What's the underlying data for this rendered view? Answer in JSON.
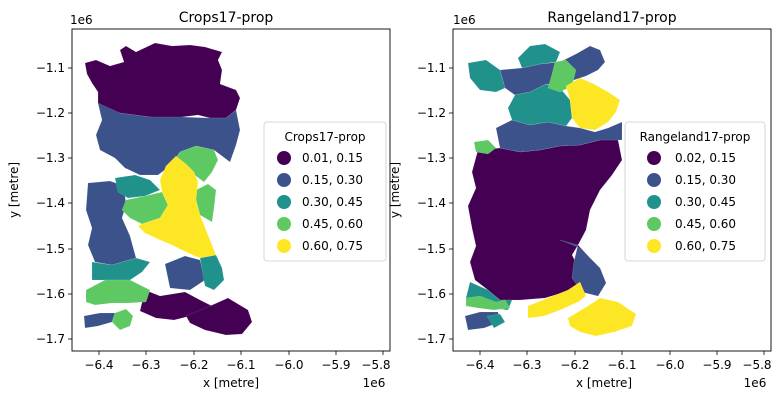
{
  "palette": [
    "#440154",
    "#3b528b",
    "#21918c",
    "#5ec962",
    "#fde725"
  ],
  "panels": [
    {
      "title": "Crops17-prop",
      "x_label": "x [metre]",
      "y_label": "y [metre]",
      "x_offset": "1e6",
      "y_offset": "1e6",
      "x_ticks": [
        "−6.4",
        "−6.3",
        "−6.2",
        "−6.1",
        "−6.0",
        "−5.9",
        "−5.8"
      ],
      "y_ticks": [
        "−1.1",
        "−1.2",
        "−1.3",
        "−1.4",
        "−1.5",
        "−1.6",
        "−1.7"
      ],
      "legend": {
        "title": "Crops17-prop",
        "entries": [
          "0.01, 0.15",
          "0.15, 0.30",
          "0.30, 0.45",
          "0.45, 0.60",
          "0.60, 0.75"
        ]
      }
    },
    {
      "title": "Rangeland17-prop",
      "x_label": "x [metre]",
      "y_label": "y [metre]",
      "x_offset": "1e6",
      "y_offset": "1e6",
      "x_ticks": [
        "−6.4",
        "−6.3",
        "−6.2",
        "−6.1",
        "−6.0",
        "−5.9",
        "−5.8"
      ],
      "y_ticks": [
        "−1.1",
        "−1.2",
        "−1.3",
        "−1.4",
        "−1.5",
        "−1.6",
        "−1.7"
      ],
      "legend": {
        "title": "Rangeland17-prop",
        "entries": [
          "0.02, 0.15",
          "0.15, 0.30",
          "0.30, 0.45",
          "0.45, 0.60",
          "0.60, 0.75"
        ]
      }
    }
  ]
}
